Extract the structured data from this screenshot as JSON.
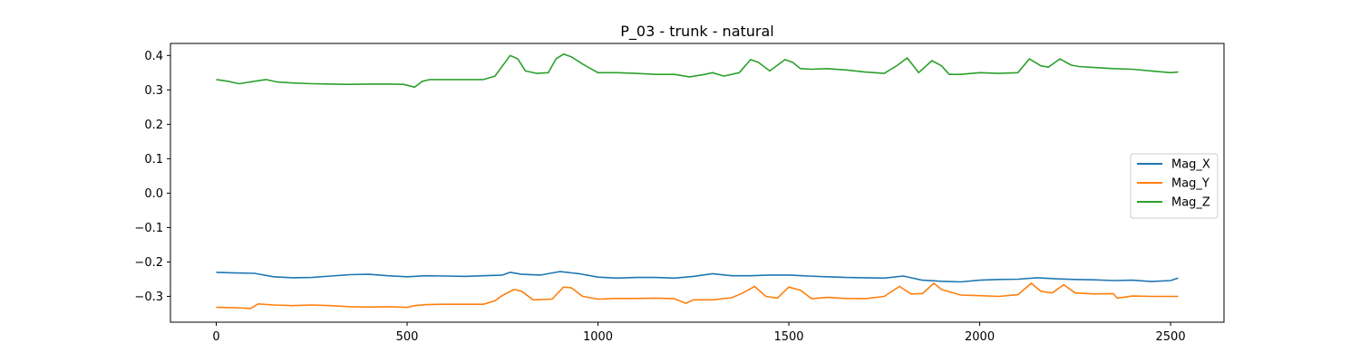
{
  "chart_data": {
    "type": "line",
    "title": "P_03 - trunk - natural",
    "xlabel": "",
    "ylabel": "",
    "xlim": [
      -120,
      2640
    ],
    "ylim": [
      -0.375,
      0.435
    ],
    "xticks": [
      0,
      500,
      1000,
      1500,
      2000,
      2500
    ],
    "xtick_labels": [
      "0",
      "500",
      "1000",
      "1500",
      "2000",
      "2500"
    ],
    "yticks": [
      -0.3,
      -0.2,
      -0.1,
      0.0,
      0.1,
      0.2,
      0.3,
      0.4
    ],
    "ytick_labels": [
      "−0.3",
      "−0.2",
      "−0.1",
      "0.0",
      "0.1",
      "0.2",
      "0.3",
      "0.4"
    ],
    "grid": false,
    "legend_position": "center-right",
    "series": [
      {
        "name": "Mag_X",
        "color": "#1f77b4",
        "x": [
          0,
          50,
          100,
          150,
          200,
          250,
          300,
          350,
          400,
          450,
          500,
          550,
          600,
          650,
          700,
          750,
          770,
          800,
          850,
          900,
          950,
          1000,
          1050,
          1100,
          1150,
          1200,
          1250,
          1300,
          1350,
          1400,
          1450,
          1500,
          1550,
          1600,
          1650,
          1700,
          1750,
          1800,
          1850,
          1900,
          1950,
          2000,
          2050,
          2100,
          2150,
          2200,
          2250,
          2300,
          2350,
          2400,
          2450,
          2500,
          2520
        ],
        "values": [
          -0.23,
          -0.232,
          -0.233,
          -0.243,
          -0.246,
          -0.245,
          -0.241,
          -0.237,
          -0.236,
          -0.24,
          -0.243,
          -0.24,
          -0.241,
          -0.242,
          -0.24,
          -0.238,
          -0.23,
          -0.236,
          -0.238,
          -0.228,
          -0.234,
          -0.244,
          -0.247,
          -0.245,
          -0.245,
          -0.247,
          -0.242,
          -0.234,
          -0.24,
          -0.24,
          -0.238,
          -0.238,
          -0.241,
          -0.243,
          -0.245,
          -0.246,
          -0.247,
          -0.241,
          -0.253,
          -0.256,
          -0.258,
          -0.253,
          -0.251,
          -0.25,
          -0.246,
          -0.249,
          -0.251,
          -0.252,
          -0.254,
          -0.253,
          -0.257,
          -0.254,
          -0.247
        ]
      },
      {
        "name": "Mag_Y",
        "color": "#ff7f0e",
        "x": [
          0,
          50,
          90,
          110,
          150,
          200,
          250,
          300,
          350,
          400,
          450,
          500,
          520,
          550,
          600,
          650,
          700,
          730,
          750,
          780,
          800,
          830,
          880,
          910,
          930,
          960,
          1000,
          1050,
          1100,
          1150,
          1200,
          1230,
          1250,
          1300,
          1350,
          1380,
          1410,
          1440,
          1470,
          1500,
          1530,
          1560,
          1600,
          1650,
          1700,
          1750,
          1790,
          1820,
          1850,
          1880,
          1900,
          1950,
          2000,
          2050,
          2100,
          2135,
          2160,
          2190,
          2220,
          2250,
          2300,
          2350,
          2360,
          2400,
          2450,
          2500,
          2520
        ],
        "values": [
          -0.332,
          -0.333,
          -0.335,
          -0.322,
          -0.325,
          -0.327,
          -0.325,
          -0.327,
          -0.33,
          -0.331,
          -0.33,
          -0.332,
          -0.327,
          -0.324,
          -0.323,
          -0.323,
          -0.323,
          -0.313,
          -0.297,
          -0.28,
          -0.285,
          -0.31,
          -0.308,
          -0.273,
          -0.275,
          -0.3,
          -0.308,
          -0.306,
          -0.306,
          -0.305,
          -0.307,
          -0.32,
          -0.31,
          -0.31,
          -0.304,
          -0.29,
          -0.271,
          -0.3,
          -0.305,
          -0.273,
          -0.282,
          -0.307,
          -0.303,
          -0.306,
          -0.307,
          -0.3,
          -0.271,
          -0.293,
          -0.292,
          -0.262,
          -0.28,
          -0.296,
          -0.298,
          -0.3,
          -0.295,
          -0.262,
          -0.285,
          -0.29,
          -0.266,
          -0.29,
          -0.293,
          -0.292,
          -0.305,
          -0.299,
          -0.3,
          -0.3,
          -0.3
        ]
      },
      {
        "name": "Mag_Z",
        "color": "#2ca02c",
        "x": [
          0,
          30,
          60,
          100,
          130,
          160,
          200,
          250,
          300,
          350,
          400,
          450,
          490,
          520,
          540,
          560,
          600,
          650,
          700,
          730,
          750,
          770,
          790,
          810,
          840,
          870,
          890,
          910,
          930,
          960,
          1000,
          1050,
          1100,
          1150,
          1200,
          1240,
          1280,
          1300,
          1330,
          1370,
          1400,
          1420,
          1450,
          1490,
          1510,
          1530,
          1560,
          1600,
          1650,
          1700,
          1750,
          1785,
          1810,
          1840,
          1875,
          1900,
          1920,
          1950,
          2000,
          2050,
          2100,
          2130,
          2160,
          2180,
          2210,
          2240,
          2260,
          2300,
          2350,
          2400,
          2450,
          2500,
          2520
        ],
        "values": [
          0.33,
          0.325,
          0.318,
          0.325,
          0.33,
          0.323,
          0.32,
          0.318,
          0.317,
          0.316,
          0.317,
          0.317,
          0.316,
          0.308,
          0.325,
          0.33,
          0.33,
          0.33,
          0.33,
          0.34,
          0.37,
          0.4,
          0.39,
          0.355,
          0.348,
          0.35,
          0.39,
          0.404,
          0.396,
          0.375,
          0.35,
          0.35,
          0.348,
          0.345,
          0.345,
          0.338,
          0.345,
          0.35,
          0.34,
          0.35,
          0.388,
          0.38,
          0.355,
          0.388,
          0.38,
          0.362,
          0.36,
          0.362,
          0.358,
          0.352,
          0.348,
          0.372,
          0.393,
          0.35,
          0.385,
          0.37,
          0.345,
          0.345,
          0.35,
          0.348,
          0.35,
          0.39,
          0.37,
          0.366,
          0.39,
          0.372,
          0.368,
          0.365,
          0.362,
          0.36,
          0.355,
          0.35,
          0.352
        ]
      }
    ]
  }
}
